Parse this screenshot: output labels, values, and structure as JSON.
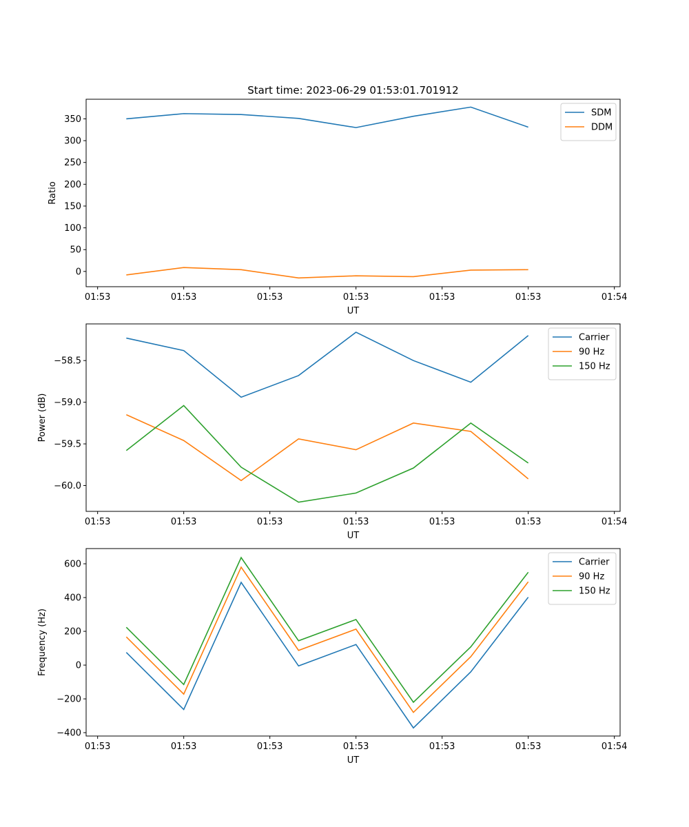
{
  "title": "Start time: 2023-06-29 01:53:01.701912",
  "colors": {
    "blue": "#1f77b4",
    "orange": "#ff7f0e",
    "green": "#2ca02c"
  },
  "chart_data": [
    {
      "type": "line",
      "ylabel": "Ratio",
      "xlabel": "UT",
      "x_tick_labels": [
        "01:53",
        "01:53",
        "01:53",
        "01:53",
        "01:53",
        "01:53",
        "01:54"
      ],
      "ylim": [
        -35,
        395
      ],
      "y_ticks": [
        0,
        50,
        100,
        150,
        200,
        250,
        300,
        350
      ],
      "legend_position": "top-right",
      "series": [
        {
          "name": "SDM",
          "color": "#1f77b4",
          "values": [
            350,
            362,
            360,
            351,
            330,
            356,
            377,
            331
          ]
        },
        {
          "name": "DDM",
          "color": "#ff7f0e",
          "values": [
            -8,
            9,
            4,
            -15,
            -10,
            -12,
            3,
            4
          ]
        }
      ]
    },
    {
      "type": "line",
      "ylabel": "Power (dB)",
      "xlabel": "UT",
      "x_tick_labels": [
        "01:53",
        "01:53",
        "01:53",
        "01:53",
        "01:53",
        "01:53",
        "01:54"
      ],
      "ylim": [
        -60.31,
        -58.06
      ],
      "y_ticks": [
        -60.0,
        -59.5,
        -59.0,
        -58.5
      ],
      "legend_position": "top-right",
      "series": [
        {
          "name": "Carrier",
          "color": "#1f77b4",
          "values": [
            -58.23,
            -58.38,
            -58.94,
            -58.68,
            -58.16,
            -58.5,
            -58.76,
            -58.2
          ]
        },
        {
          "name": "90 Hz",
          "color": "#ff7f0e",
          "values": [
            -59.15,
            -59.46,
            -59.94,
            -59.44,
            -59.57,
            -59.25,
            -59.35,
            -59.92
          ]
        },
        {
          "name": "150 Hz",
          "color": "#2ca02c",
          "values": [
            -59.58,
            -59.04,
            -59.78,
            -60.2,
            -60.09,
            -59.79,
            -59.25,
            -59.73
          ]
        }
      ]
    },
    {
      "type": "line",
      "ylabel": "Frequency (Hz)",
      "xlabel": "UT",
      "x_tick_labels": [
        "01:53",
        "01:53",
        "01:53",
        "01:53",
        "01:53",
        "01:53",
        "01:54"
      ],
      "ylim": [
        -420,
        690
      ],
      "y_ticks": [
        -400,
        -200,
        0,
        200,
        400,
        600
      ],
      "legend_position": "top-right",
      "series": [
        {
          "name": "Carrier",
          "color": "#1f77b4",
          "values": [
            75,
            -263,
            490,
            -5,
            122,
            -372,
            -40,
            402
          ]
        },
        {
          "name": "90 Hz",
          "color": "#ff7f0e",
          "values": [
            167,
            -172,
            580,
            87,
            213,
            -280,
            50,
            493
          ]
        },
        {
          "name": "150 Hz",
          "color": "#2ca02c",
          "values": [
            224,
            -115,
            637,
            144,
            270,
            -220,
            108,
            550
          ]
        }
      ]
    }
  ]
}
